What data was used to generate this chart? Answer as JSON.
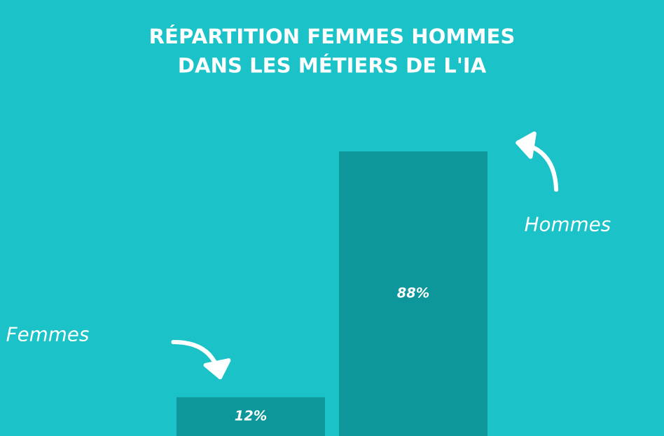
{
  "chart_data": {
    "type": "bar",
    "title": "RÉPARTITION FEMMES HOMMES\nDANS LES MÉTIERS DE L'IA",
    "categories": [
      null,
      null
    ],
    "annotations": [
      "Femmes",
      "Hommes"
    ],
    "values": [
      12,
      88
    ],
    "value_labels": [
      "12%",
      "88%"
    ],
    "color": "#0e979b"
  }
}
